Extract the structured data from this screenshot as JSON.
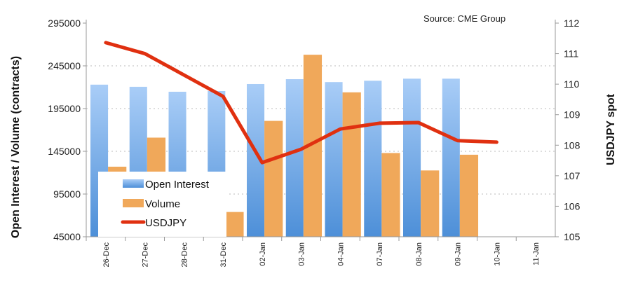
{
  "chart_data": {
    "type": "bar",
    "source": "Source: CME Group",
    "categories": [
      "26-Dec",
      "27-Dec",
      "28-Dec",
      "31-Dec",
      "02-Jan",
      "03-Jan",
      "04-Jan",
      "07-Jan",
      "08-Jan",
      "09-Jan",
      "10-Jan",
      "11-Jan"
    ],
    "series": [
      {
        "name": "Open Interest",
        "type": "bar",
        "axis": "left",
        "color": "#5b9be0",
        "values": [
          223000,
          220500,
          214700,
          215500,
          223700,
          229400,
          226000,
          227600,
          230000,
          230000,
          null,
          null
        ]
      },
      {
        "name": "Volume",
        "type": "bar",
        "axis": "left",
        "color": "#f0a85a",
        "values": [
          127000,
          161000,
          60000,
          74000,
          180600,
          258000,
          214000,
          143000,
          122600,
          141000,
          null,
          null
        ]
      },
      {
        "name": "USDJPY",
        "type": "line",
        "axis": "right",
        "color": "#e03010",
        "values": [
          111.36,
          111.0,
          110.3,
          109.6,
          107.43,
          107.87,
          108.53,
          108.72,
          108.74,
          108.15,
          108.1,
          null
        ]
      }
    ],
    "ylabel": "Open Interest / Volume (contracts)",
    "y2label": "USDJPY spot",
    "ylim": [
      45000,
      295000
    ],
    "yticks": [
      "295000",
      "245000",
      "195000",
      "145000",
      "95000",
      "45000"
    ],
    "y2lim": [
      105,
      112
    ],
    "y2ticks": [
      "112",
      "111",
      "110",
      "109",
      "108",
      "107",
      "106",
      "105"
    ],
    "grid": true,
    "legend": "bottom-left"
  }
}
